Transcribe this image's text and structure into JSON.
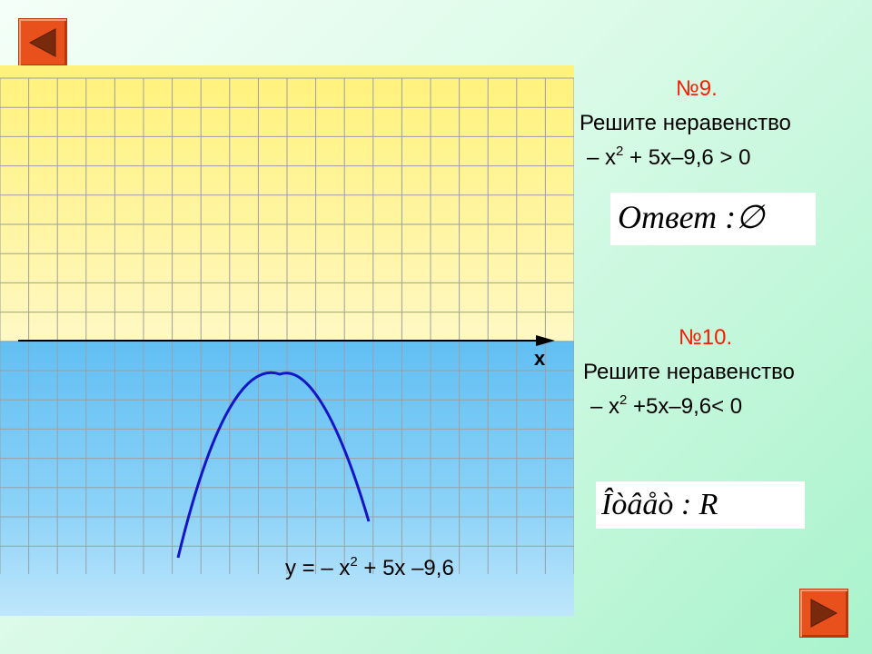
{
  "navigation": {
    "prev_icon": "triangle-left-icon",
    "next_icon": "triangle-right-icon",
    "button_color": "#e8501c"
  },
  "graph": {
    "axis_label": "x",
    "function_label_prefix": "y = – x",
    "function_label_exp": "2",
    "function_label_suffix": " + 5x –9,6"
  },
  "problem9": {
    "number": "№9.",
    "instruction": "Решите неравенство",
    "ineq_prefix": "– x",
    "ineq_exp": "2",
    "ineq_suffix": " + 5x–9,6 > 0",
    "answer": "Ответ  :∅"
  },
  "problem10": {
    "number": "№10.",
    "instruction": "Решите неравенство",
    "ineq_prefix": "– x",
    "ineq_exp": "2",
    "ineq_suffix": " +5x–9,6< 0",
    "answer": "Îòâåò      : R"
  },
  "colors": {
    "upper_region": "#fff27a",
    "lower_region": "#62bff3",
    "curve": "#1414c8",
    "problem_number": "#ff1a00"
  }
}
